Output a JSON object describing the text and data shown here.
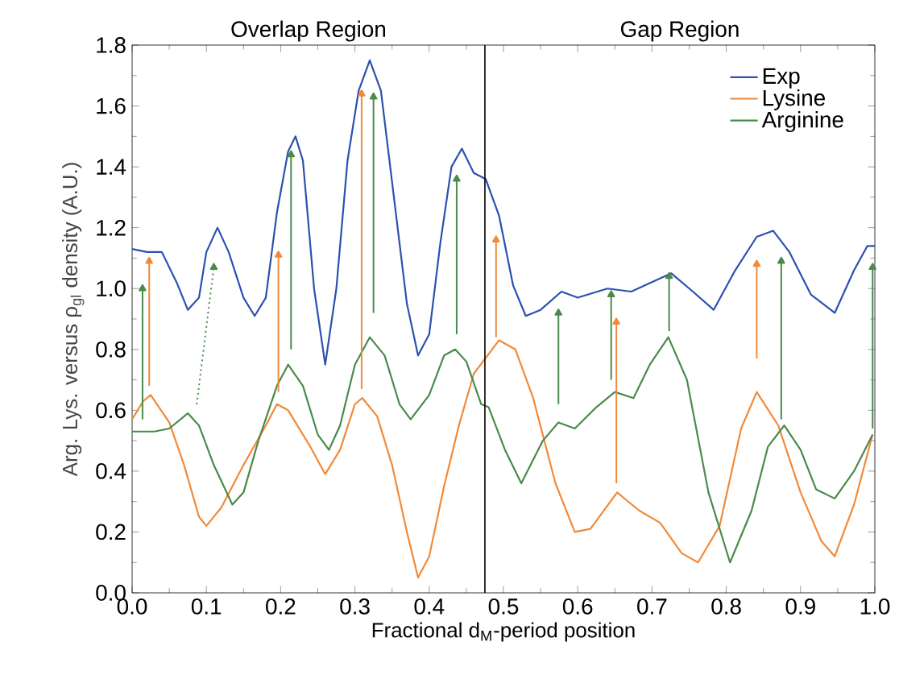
{
  "chart_data": {
    "type": "line",
    "xlabel": "Fractional d$_{M}$-period position",
    "ylabel": "Arg. Lys. versus ρ$_{gl}$ density (A.U.)",
    "annotations": [
      "Overlap Region",
      "Gap Region"
    ],
    "xlim": [
      0,
      1
    ],
    "ylim": [
      0,
      1.8
    ],
    "xticks": [
      {
        "value": 0,
        "label": "0.0"
      },
      0.1,
      0.2,
      0.3,
      0.4,
      0.5,
      0.6,
      0.7,
      0.8,
      0.9,
      {
        "value": 1,
        "label": "1.0"
      }
    ],
    "yticks": [
      {
        "value": 0,
        "label": "0.0"
      },
      0.2,
      0.4,
      0.6,
      0.8,
      {
        "value": 1,
        "label": "1.0"
      },
      1.2,
      1.4,
      1.6,
      1.8
    ],
    "legend": "top right",
    "ref_lines": [
      {
        "axis": "x",
        "value": 0.475,
        "color": "#000000"
      }
    ],
    "series": [
      {
        "name": "Exp",
        "color": "#2b50b0",
        "x": [
          0,
          0.02,
          0.04,
          0.06,
          0.075,
          0.09,
          0.1,
          0.115,
          0.13,
          0.15,
          0.165,
          0.18,
          0.195,
          0.21,
          0.22,
          0.23,
          0.245,
          0.26,
          0.275,
          0.29,
          0.305,
          0.32,
          0.335,
          0.35,
          0.37,
          0.385,
          0.4,
          0.415,
          0.43,
          0.444,
          0.46,
          0.476,
          0.494,
          0.513,
          0.53,
          0.55,
          0.578,
          0.6,
          0.64,
          0.672,
          0.726,
          0.755,
          0.783,
          0.812,
          0.841,
          0.863,
          0.885,
          0.914,
          0.946,
          0.972,
          0.99,
          1.0
        ],
        "values": [
          1.13,
          1.12,
          1.12,
          1.02,
          0.93,
          0.97,
          1.12,
          1.2,
          1.12,
          0.97,
          0.91,
          0.97,
          1.25,
          1.45,
          1.5,
          1.42,
          1.0,
          0.75,
          1.0,
          1.42,
          1.65,
          1.75,
          1.65,
          1.35,
          0.95,
          0.78,
          0.85,
          1.15,
          1.4,
          1.46,
          1.38,
          1.36,
          1.24,
          1.01,
          0.91,
          0.93,
          0.99,
          0.97,
          1.0,
          0.99,
          1.05,
          0.99,
          0.93,
          1.06,
          1.17,
          1.19,
          1.12,
          0.98,
          0.92,
          1.06,
          1.14,
          1.14
        ]
      },
      {
        "name": "Lysine",
        "color": "#f08a3a",
        "x": [
          0,
          0.015,
          0.025,
          0.05,
          0.07,
          0.09,
          0.1,
          0.12,
          0.15,
          0.18,
          0.195,
          0.21,
          0.24,
          0.26,
          0.28,
          0.3,
          0.31,
          0.33,
          0.35,
          0.37,
          0.385,
          0.4,
          0.42,
          0.44,
          0.46,
          0.494,
          0.516,
          0.54,
          0.57,
          0.596,
          0.617,
          0.653,
          0.683,
          0.711,
          0.74,
          0.762,
          0.791,
          0.82,
          0.841,
          0.87,
          0.9,
          0.928,
          0.946,
          0.972,
          0.997
        ],
        "values": [
          0.57,
          0.63,
          0.65,
          0.56,
          0.42,
          0.25,
          0.22,
          0.28,
          0.42,
          0.55,
          0.62,
          0.6,
          0.48,
          0.39,
          0.47,
          0.62,
          0.64,
          0.58,
          0.42,
          0.2,
          0.05,
          0.12,
          0.35,
          0.55,
          0.72,
          0.83,
          0.8,
          0.64,
          0.36,
          0.2,
          0.21,
          0.33,
          0.27,
          0.23,
          0.13,
          0.1,
          0.22,
          0.54,
          0.66,
          0.55,
          0.33,
          0.17,
          0.12,
          0.29,
          0.52
        ]
      },
      {
        "name": "Arginine",
        "color": "#4a8a4a",
        "x": [
          0,
          0.03,
          0.05,
          0.075,
          0.09,
          0.11,
          0.135,
          0.15,
          0.17,
          0.195,
          0.21,
          0.23,
          0.25,
          0.265,
          0.28,
          0.3,
          0.32,
          0.34,
          0.36,
          0.375,
          0.4,
          0.42,
          0.435,
          0.45,
          0.47,
          0.48,
          0.502,
          0.524,
          0.553,
          0.574,
          0.596,
          0.625,
          0.65,
          0.675,
          0.697,
          0.722,
          0.747,
          0.776,
          0.805,
          0.834,
          0.856,
          0.878,
          0.9,
          0.921,
          0.946,
          0.972,
          0.997
        ],
        "values": [
          0.53,
          0.53,
          0.54,
          0.59,
          0.55,
          0.42,
          0.29,
          0.33,
          0.5,
          0.68,
          0.75,
          0.68,
          0.52,
          0.47,
          0.55,
          0.75,
          0.84,
          0.78,
          0.62,
          0.57,
          0.65,
          0.78,
          0.8,
          0.76,
          0.62,
          0.61,
          0.47,
          0.36,
          0.5,
          0.56,
          0.54,
          0.61,
          0.66,
          0.64,
          0.75,
          0.84,
          0.7,
          0.33,
          0.1,
          0.27,
          0.48,
          0.55,
          0.47,
          0.34,
          0.31,
          0.4,
          0.52
        ]
      },
      {
        "color": "#4a8a4a",
        "marker": "triangle",
        "x": [
          0.014,
          0.014
        ],
        "values": [
          0.57,
          1.0
        ]
      },
      {
        "color": "#f08a3a",
        "marker": "triangle",
        "x": [
          0.023,
          0.023
        ],
        "values": [
          0.68,
          1.09
        ]
      },
      {
        "color": "#4a8a4a",
        "marker": "triangle",
        "line_style": "dotted",
        "x": [
          0.087,
          0.11
        ],
        "values": [
          0.62,
          1.07
        ]
      },
      {
        "color": "#f08a3a",
        "marker": "triangle",
        "x": [
          0.197,
          0.197
        ],
        "values": [
          0.66,
          1.11
        ]
      },
      {
        "color": "#4a8a4a",
        "marker": "triangle",
        "x": [
          0.214,
          0.214
        ],
        "values": [
          0.8,
          1.44
        ]
      },
      {
        "color": "#f08a3a",
        "marker": "triangle",
        "x": [
          0.309,
          0.309
        ],
        "values": [
          0.67,
          1.64
        ]
      },
      {
        "color": "#4a8a4a",
        "marker": "triangle",
        "x": [
          0.325,
          0.325
        ],
        "values": [
          0.92,
          1.63
        ]
      },
      {
        "color": "#4a8a4a",
        "marker": "triangle",
        "x": [
          0.437,
          0.437
        ],
        "values": [
          0.85,
          1.36
        ]
      },
      {
        "color": "#f08a3a",
        "marker": "triangle",
        "x": [
          0.49,
          0.49
        ],
        "values": [
          0.84,
          1.16
        ]
      },
      {
        "color": "#4a8a4a",
        "marker": "triangle",
        "x": [
          0.574,
          0.574
        ],
        "values": [
          0.62,
          0.92
        ]
      },
      {
        "color": "#4a8a4a",
        "marker": "triangle",
        "x": [
          0.645,
          0.645
        ],
        "values": [
          0.7,
          0.98
        ]
      },
      {
        "color": "#f08a3a",
        "marker": "triangle",
        "x": [
          0.652,
          0.652
        ],
        "values": [
          0.36,
          0.89
        ]
      },
      {
        "color": "#4a8a4a",
        "marker": "triangle",
        "x": [
          0.723,
          0.723
        ],
        "values": [
          0.86,
          1.04
        ]
      },
      {
        "color": "#f08a3a",
        "marker": "triangle",
        "x": [
          0.841,
          0.841
        ],
        "values": [
          0.77,
          1.08
        ]
      },
      {
        "color": "#4a8a4a",
        "marker": "triangle",
        "x": [
          0.874,
          0.874
        ],
        "values": [
          0.57,
          1.09
        ]
      },
      {
        "color": "#4a8a4a",
        "marker": "triangle",
        "x": [
          0.997,
          0.997
        ],
        "values": [
          0.54,
          1.07
        ]
      }
    ]
  }
}
